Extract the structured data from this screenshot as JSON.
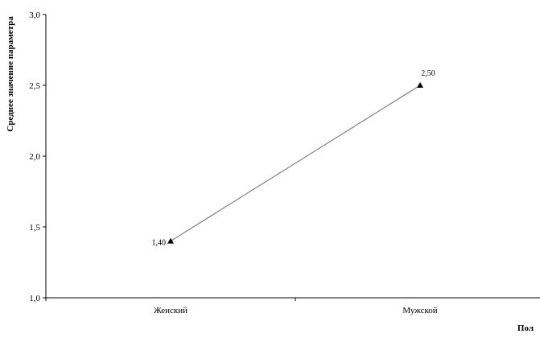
{
  "chart_data": {
    "type": "line",
    "categories": [
      "Женский",
      "Мужской"
    ],
    "series": [
      {
        "values": [
          1.4,
          2.5
        ],
        "labels": [
          "1,40",
          "2,50"
        ],
        "marker": "triangle",
        "color": "#808080"
      }
    ],
    "xlabel": "Пол",
    "ylabel": "Среднее значение параметра",
    "ylim": [
      1.0,
      3.0
    ],
    "yticks": [
      1.0,
      1.5,
      2.0,
      2.5,
      3.0
    ],
    "ytick_labels": [
      "1,0",
      "1,5",
      "2,0",
      "2,5",
      "3,0"
    ],
    "grid": false,
    "legend": "none"
  }
}
